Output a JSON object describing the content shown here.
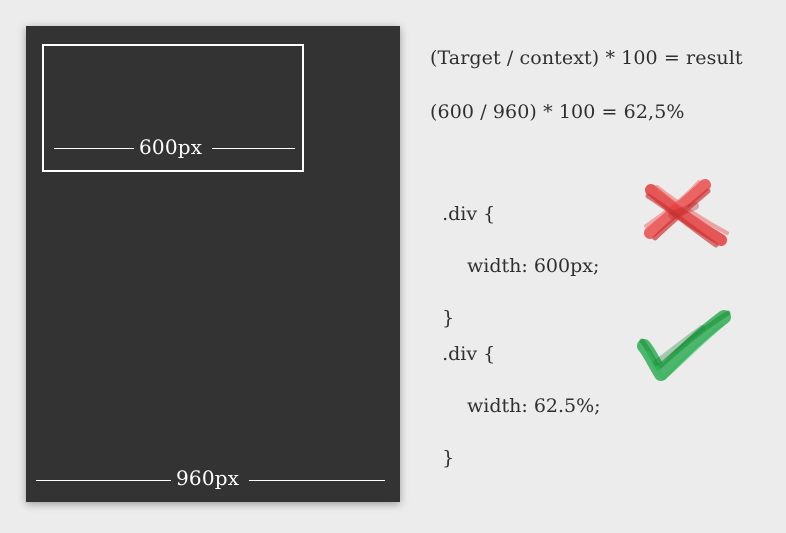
{
  "diagram": {
    "outer_width_label": "960px",
    "inner_width_label": "600px",
    "formula": {
      "general": "(Target / context) * 100 = result",
      "example": "(600 / 960) * 100 = 62,5%"
    },
    "examples": [
      {
        "selector_line": ".div {",
        "declaration": "width: 600px;",
        "closing_line": "}",
        "status": "wrong",
        "mark_icon": "red-cross-icon",
        "mark_color": "#e33a3a"
      },
      {
        "selector_line": ".div {",
        "declaration": "width: 62.5%;",
        "closing_line": "}",
        "status": "correct",
        "mark_icon": "green-check-icon",
        "mark_color": "#22a24a"
      }
    ]
  }
}
